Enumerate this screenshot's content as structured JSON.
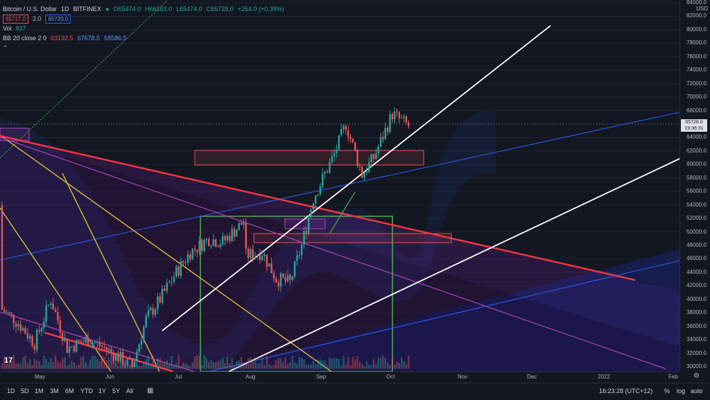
{
  "legend": {
    "symbol": "Bitcoin / U.S. Dollar",
    "interval": "1D",
    "exchange": "BITFINEX",
    "ohlc": {
      "o": "O65474.0",
      "h": "H66163.0",
      "l": "L65474.0",
      "c": "C65728.0",
      "chg": "+254.0 (+0.39%)"
    },
    "sell": "65717.0",
    "spread": "3.0",
    "buy": "65720.0",
    "vol_label": "Vol",
    "vol_value": "937",
    "bb_label": "BB 20 close 2 0",
    "bb_basis": "63132.5",
    "bb_upper": "67678.5",
    "bb_lower": "58586.5"
  },
  "scale": {
    "currency": "USD",
    "ticks": [
      "84000.0",
      "82000.0",
      "80000.0",
      "78000.0",
      "76000.0",
      "74000.0",
      "72000.0",
      "70000.0",
      "68000.0",
      "66000.0",
      "64000.0",
      "62000.0",
      "60000.0",
      "58000.0",
      "56000.0",
      "54000.0",
      "52000.0",
      "50000.0",
      "48000.0",
      "46000.0",
      "44000.0",
      "42000.0",
      "40000.0",
      "38000.0",
      "36000.0",
      "34000.0",
      "32000.0",
      "30000.0"
    ],
    "last_price": "65728.0",
    "countdown": "19:36:31"
  },
  "time_axis": [
    "May",
    "Jun",
    "Jul",
    "Aug",
    "Sep",
    "Oct",
    "Nov",
    "Dec",
    "2022",
    "Feb"
  ],
  "bottom": {
    "ranges": [
      "1D",
      "5D",
      "1M",
      "3M",
      "6M",
      "YTD",
      "1Y",
      "5Y",
      "All"
    ],
    "clock": "16:23:28 (UTC+12)",
    "percent": "%",
    "log": "log",
    "auto": "auto"
  },
  "colors": {
    "up": "#26a69a",
    "down": "#ef5350",
    "accent": "#2962ff"
  },
  "chart_data": {
    "type": "candlestick",
    "ylim": [
      30000,
      84000
    ],
    "close_series": [
      {
        "date": "Apr 28",
        "close": 54000
      },
      {
        "date": "May 03",
        "close": 56500
      },
      {
        "date": "May 08",
        "close": 58000
      },
      {
        "date": "May 12",
        "close": 50000
      },
      {
        "date": "May 19",
        "close": 37000
      },
      {
        "date": "May 25",
        "close": 38500
      },
      {
        "date": "Jun 01",
        "close": 36500
      },
      {
        "date": "Jun 08",
        "close": 33500
      },
      {
        "date": "Jun 15",
        "close": 40000
      },
      {
        "date": "Jun 22",
        "close": 32800
      },
      {
        "date": "Jul 01",
        "close": 34000
      },
      {
        "date": "Jul 08",
        "close": 32800
      },
      {
        "date": "Jul 20",
        "close": 30000
      },
      {
        "date": "Jul 26",
        "close": 37000
      },
      {
        "date": "Aug 01",
        "close": 40000
      },
      {
        "date": "Aug 08",
        "close": 44000
      },
      {
        "date": "Aug 14",
        "close": 47000
      },
      {
        "date": "Aug 22",
        "close": 49000
      },
      {
        "date": "Aug 28",
        "close": 48500
      },
      {
        "date": "Sep 06",
        "close": 51500
      },
      {
        "date": "Sep 07",
        "close": 46500
      },
      {
        "date": "Sep 14",
        "close": 47000
      },
      {
        "date": "Sep 20",
        "close": 43000
      },
      {
        "date": "Sep 26",
        "close": 42500
      },
      {
        "date": "Oct 01",
        "close": 48000
      },
      {
        "date": "Oct 06",
        "close": 55000
      },
      {
        "date": "Oct 15",
        "close": 61500
      },
      {
        "date": "Oct 20",
        "close": 66000
      },
      {
        "date": "Oct 27",
        "close": 58500
      },
      {
        "date": "Nov 01",
        "close": 61000
      },
      {
        "date": "Nov 09",
        "close": 67500
      },
      {
        "date": "Nov 16",
        "close": 65728
      }
    ]
  }
}
